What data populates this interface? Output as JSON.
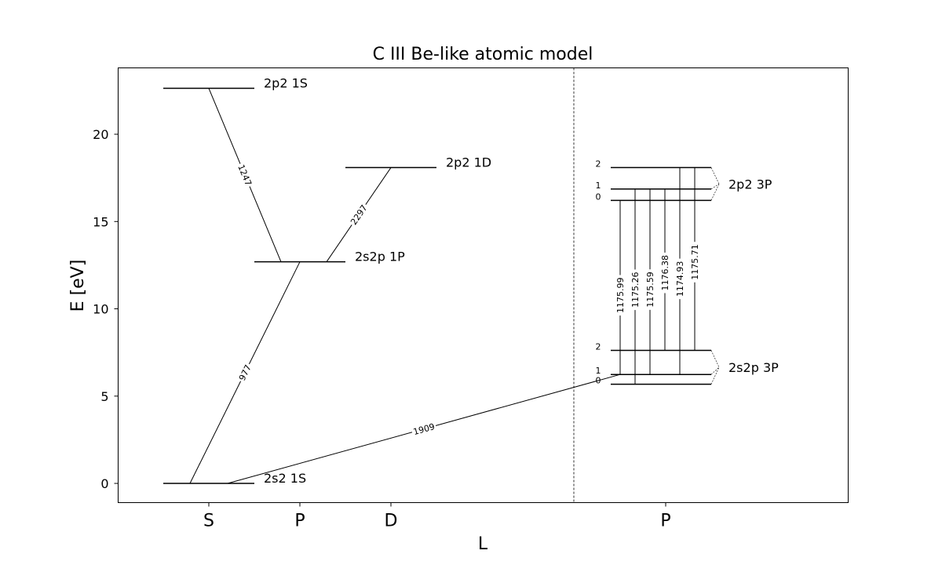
{
  "chart_data": {
    "type": "grotrian-diagram",
    "title": "C III Be-like atomic model",
    "xlabel": "L",
    "ylabel": "E [eV]",
    "ylim": [
      -1.1,
      23.8
    ],
    "yticks": [
      0,
      5,
      10,
      15,
      20
    ],
    "columns": [
      {
        "key": "S_singlet",
        "label": "S"
      },
      {
        "key": "P_singlet",
        "label": "P"
      },
      {
        "key": "D_singlet",
        "label": "D"
      },
      {
        "key": "P_triplet",
        "label": "P"
      }
    ],
    "singlet_levels": [
      {
        "id": "2s2_1S",
        "label": "2s2 1S",
        "column": "S_singlet",
        "energy": 0.0
      },
      {
        "id": "2s2p_1P",
        "label": "2s2p 1P",
        "column": "P_singlet",
        "energy": 12.69
      },
      {
        "id": "2p2_1D",
        "label": "2p2 1D",
        "column": "D_singlet",
        "energy": 18.09
      },
      {
        "id": "2p2_1S",
        "label": "2p2 1S",
        "column": "S_singlet",
        "energy": 22.63
      }
    ],
    "triplet_terms": [
      {
        "id": "2s2p_3P",
        "label": "2s2p 3P",
        "column": "P_triplet",
        "sublevels": [
          {
            "J": "0",
            "energy": 5.68
          },
          {
            "J": "1",
            "energy": 6.24
          },
          {
            "J": "2",
            "energy": 7.62
          }
        ]
      },
      {
        "id": "2p2_3P",
        "label": "2p2 3P",
        "column": "P_triplet",
        "sublevels": [
          {
            "J": "0",
            "energy": 16.21
          },
          {
            "J": "1",
            "energy": 16.86
          },
          {
            "J": "2",
            "energy": 18.09
          }
        ]
      }
    ],
    "transitions": [
      {
        "label": "1247",
        "from": "2s2p_1P",
        "to": "2p2_1S"
      },
      {
        "label": "2297",
        "from": "2s2p_1P",
        "to": "2p2_1D"
      },
      {
        "label": "977",
        "from": "2s2_1S",
        "to": "2s2p_1P"
      },
      {
        "label": "1909",
        "from": "2s2_1S",
        "to": "2s2p_3P",
        "toJ": "1"
      }
    ],
    "triplet_transitions": [
      {
        "label": "1175.99",
        "lowerJ": "1",
        "upperJ": "0"
      },
      {
        "label": "1175.26",
        "lowerJ": "0",
        "upperJ": "1"
      },
      {
        "label": "1175.59",
        "lowerJ": "1",
        "upperJ": "1"
      },
      {
        "label": "1176.38",
        "lowerJ": "2",
        "upperJ": "1"
      },
      {
        "label": "1174.93",
        "lowerJ": "1",
        "upperJ": "2"
      },
      {
        "label": "1175.71",
        "lowerJ": "2",
        "upperJ": "2"
      }
    ],
    "separator": "dashed vertical line between singlet and triplet columns"
  }
}
